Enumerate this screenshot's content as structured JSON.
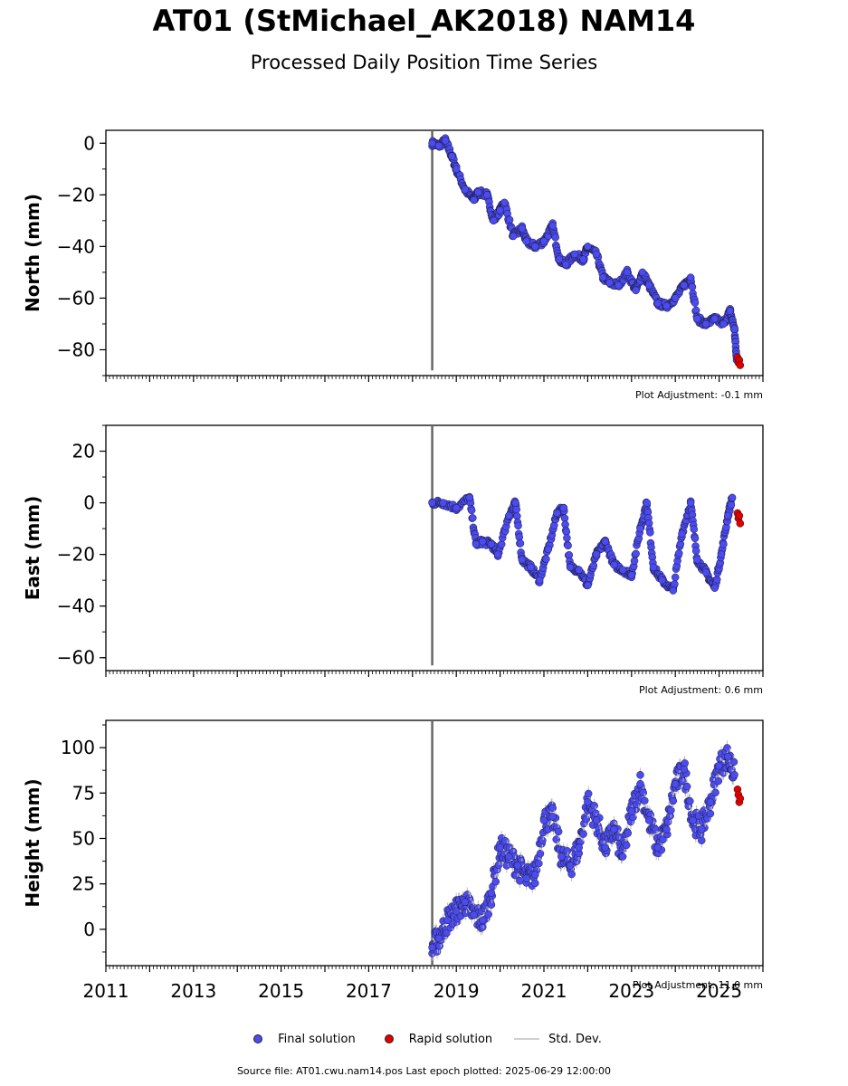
{
  "page": {
    "title": "AT01 (StMichael_AK2018) NAM14",
    "subtitle": "Processed Daily Position Time Series",
    "footer": "Source file: AT01.cwu.nam14.pos  Last epoch plotted: 2025-06-29 12:00:00"
  },
  "legend": {
    "final_label": "Final solution",
    "rapid_label": "Rapid solution",
    "std_label": "Std. Dev."
  },
  "colors": {
    "final": "#4b4bf0",
    "rapid": "#e00000",
    "std": "#bdbdbd",
    "marker_edge": "#1a1a3a"
  },
  "chart_data": [
    {
      "type": "scatter",
      "ylabel": "North (mm)",
      "xlim": [
        2011.0,
        2026.0
      ],
      "ylim": [
        -90,
        5
      ],
      "yticks": [
        0,
        -20,
        -40,
        -60,
        -80
      ],
      "ytick_labels": [
        "0",
        "−20",
        "−40",
        "−60",
        "−80"
      ],
      "adjustment": "Plot Adjustment: -0.1 mm",
      "series": [
        {
          "name": "Final solution",
          "x": [
            2018.45,
            2018.6,
            2018.75,
            2018.9,
            2019.0,
            2019.2,
            2019.4,
            2019.5,
            2019.7,
            2019.85,
            2020.0,
            2020.1,
            2020.3,
            2020.5,
            2020.6,
            2020.8,
            2021.0,
            2021.2,
            2021.35,
            2021.5,
            2021.7,
            2021.9,
            2022.0,
            2022.2,
            2022.35,
            2022.5,
            2022.7,
            2022.9,
            2023.1,
            2023.25,
            2023.4,
            2023.6,
            2023.8,
            2024.0,
            2024.2,
            2024.35,
            2024.5,
            2024.7,
            2024.9,
            2025.1,
            2025.25,
            2025.35,
            2025.4
          ],
          "y": [
            0,
            -1,
            1,
            -5,
            -10,
            -18,
            -22,
            -19,
            -20,
            -30,
            -26,
            -23,
            -36,
            -33,
            -38,
            -40,
            -38,
            -32,
            -45,
            -47,
            -43,
            -45,
            -40,
            -43,
            -52,
            -54,
            -55,
            -50,
            -57,
            -50,
            -55,
            -62,
            -63,
            -60,
            -55,
            -52,
            -68,
            -70,
            -68,
            -70,
            -65,
            -72,
            -84
          ]
        },
        {
          "name": "Rapid solution",
          "x": [
            2025.42,
            2025.44,
            2025.46,
            2025.48
          ],
          "y": [
            -83,
            -85,
            -84,
            -86
          ]
        }
      ],
      "std_spike": {
        "x": 2018.45,
        "y_range": [
          -88,
          5
        ]
      }
    },
    {
      "type": "scatter",
      "ylabel": "East (mm)",
      "xlim": [
        2011.0,
        2026.0
      ],
      "ylim": [
        -65,
        30
      ],
      "yticks": [
        20,
        0,
        -20,
        -40,
        -60
      ],
      "ytick_labels": [
        "20",
        "0",
        "−20",
        "−40",
        "−60"
      ],
      "adjustment": "Plot Adjustment: 0.6 mm",
      "series": [
        {
          "name": "Final solution",
          "x": [
            2018.45,
            2018.7,
            2019.0,
            2019.3,
            2019.45,
            2019.6,
            2019.8,
            2019.95,
            2020.2,
            2020.35,
            2020.5,
            2020.7,
            2020.9,
            2021.1,
            2021.3,
            2021.45,
            2021.6,
            2021.8,
            2022.0,
            2022.2,
            2022.4,
            2022.6,
            2022.8,
            2023.0,
            2023.2,
            2023.35,
            2023.5,
            2023.7,
            2023.95,
            2024.15,
            2024.35,
            2024.5,
            2024.7,
            2024.9,
            2025.05,
            2025.2,
            2025.3
          ],
          "y": [
            0,
            0,
            -2,
            2,
            -16,
            -15,
            -16,
            -20,
            -5,
            0,
            -22,
            -25,
            -30,
            -18,
            -4,
            -2,
            -25,
            -26,
            -32,
            -20,
            -15,
            -24,
            -26,
            -28,
            -10,
            0,
            -25,
            -30,
            -34,
            -12,
            0,
            -22,
            -27,
            -33,
            -20,
            -5,
            2
          ]
        },
        {
          "name": "Rapid solution",
          "x": [
            2025.42,
            2025.44,
            2025.46,
            2025.48
          ],
          "y": [
            -4,
            -6,
            -5,
            -8
          ]
        }
      ],
      "std_spike": {
        "x": 2018.45,
        "y_range": [
          -63,
          30
        ]
      }
    },
    {
      "type": "scatter",
      "ylabel": "Height (mm)",
      "xlim": [
        2011.0,
        2026.0
      ],
      "ylim": [
        -20,
        115
      ],
      "yticks": [
        100,
        75,
        50,
        25,
        0
      ],
      "ytick_labels": [
        "100",
        "75",
        "50",
        "25",
        "0"
      ],
      "adjustment": "Plot Adjustment: 11.0 mm",
      "xticks": [
        2011,
        2013,
        2015,
        2017,
        2019,
        2021,
        2023,
        2025
      ],
      "xtick_labels": [
        "2011",
        "2013",
        "2015",
        "2017",
        "2019",
        "2021",
        "2023",
        "2025"
      ],
      "series": [
        {
          "name": "Final solution",
          "x": [
            2018.45,
            2018.6,
            2018.8,
            2019.0,
            2019.2,
            2019.4,
            2019.6,
            2019.8,
            2020.0,
            2020.2,
            2020.4,
            2020.6,
            2020.8,
            2021.0,
            2021.2,
            2021.4,
            2021.6,
            2021.8,
            2022.0,
            2022.2,
            2022.4,
            2022.6,
            2022.8,
            2023.0,
            2023.2,
            2023.4,
            2023.6,
            2023.8,
            2024.0,
            2024.2,
            2024.4,
            2024.6,
            2024.8,
            2025.0,
            2025.2,
            2025.35
          ],
          "y": [
            -10,
            -5,
            5,
            10,
            15,
            8,
            5,
            20,
            45,
            40,
            35,
            28,
            30,
            60,
            62,
            40,
            35,
            45,
            70,
            60,
            45,
            55,
            40,
            65,
            80,
            60,
            45,
            55,
            80,
            88,
            60,
            55,
            70,
            90,
            95,
            85
          ]
        },
        {
          "name": "Rapid solution",
          "x": [
            2025.42,
            2025.44,
            2025.46,
            2025.48
          ],
          "y": [
            77,
            74,
            70,
            72
          ]
        }
      ],
      "std_spike": {
        "x": 2018.45,
        "y_range": [
          -20,
          115
        ]
      }
    }
  ]
}
